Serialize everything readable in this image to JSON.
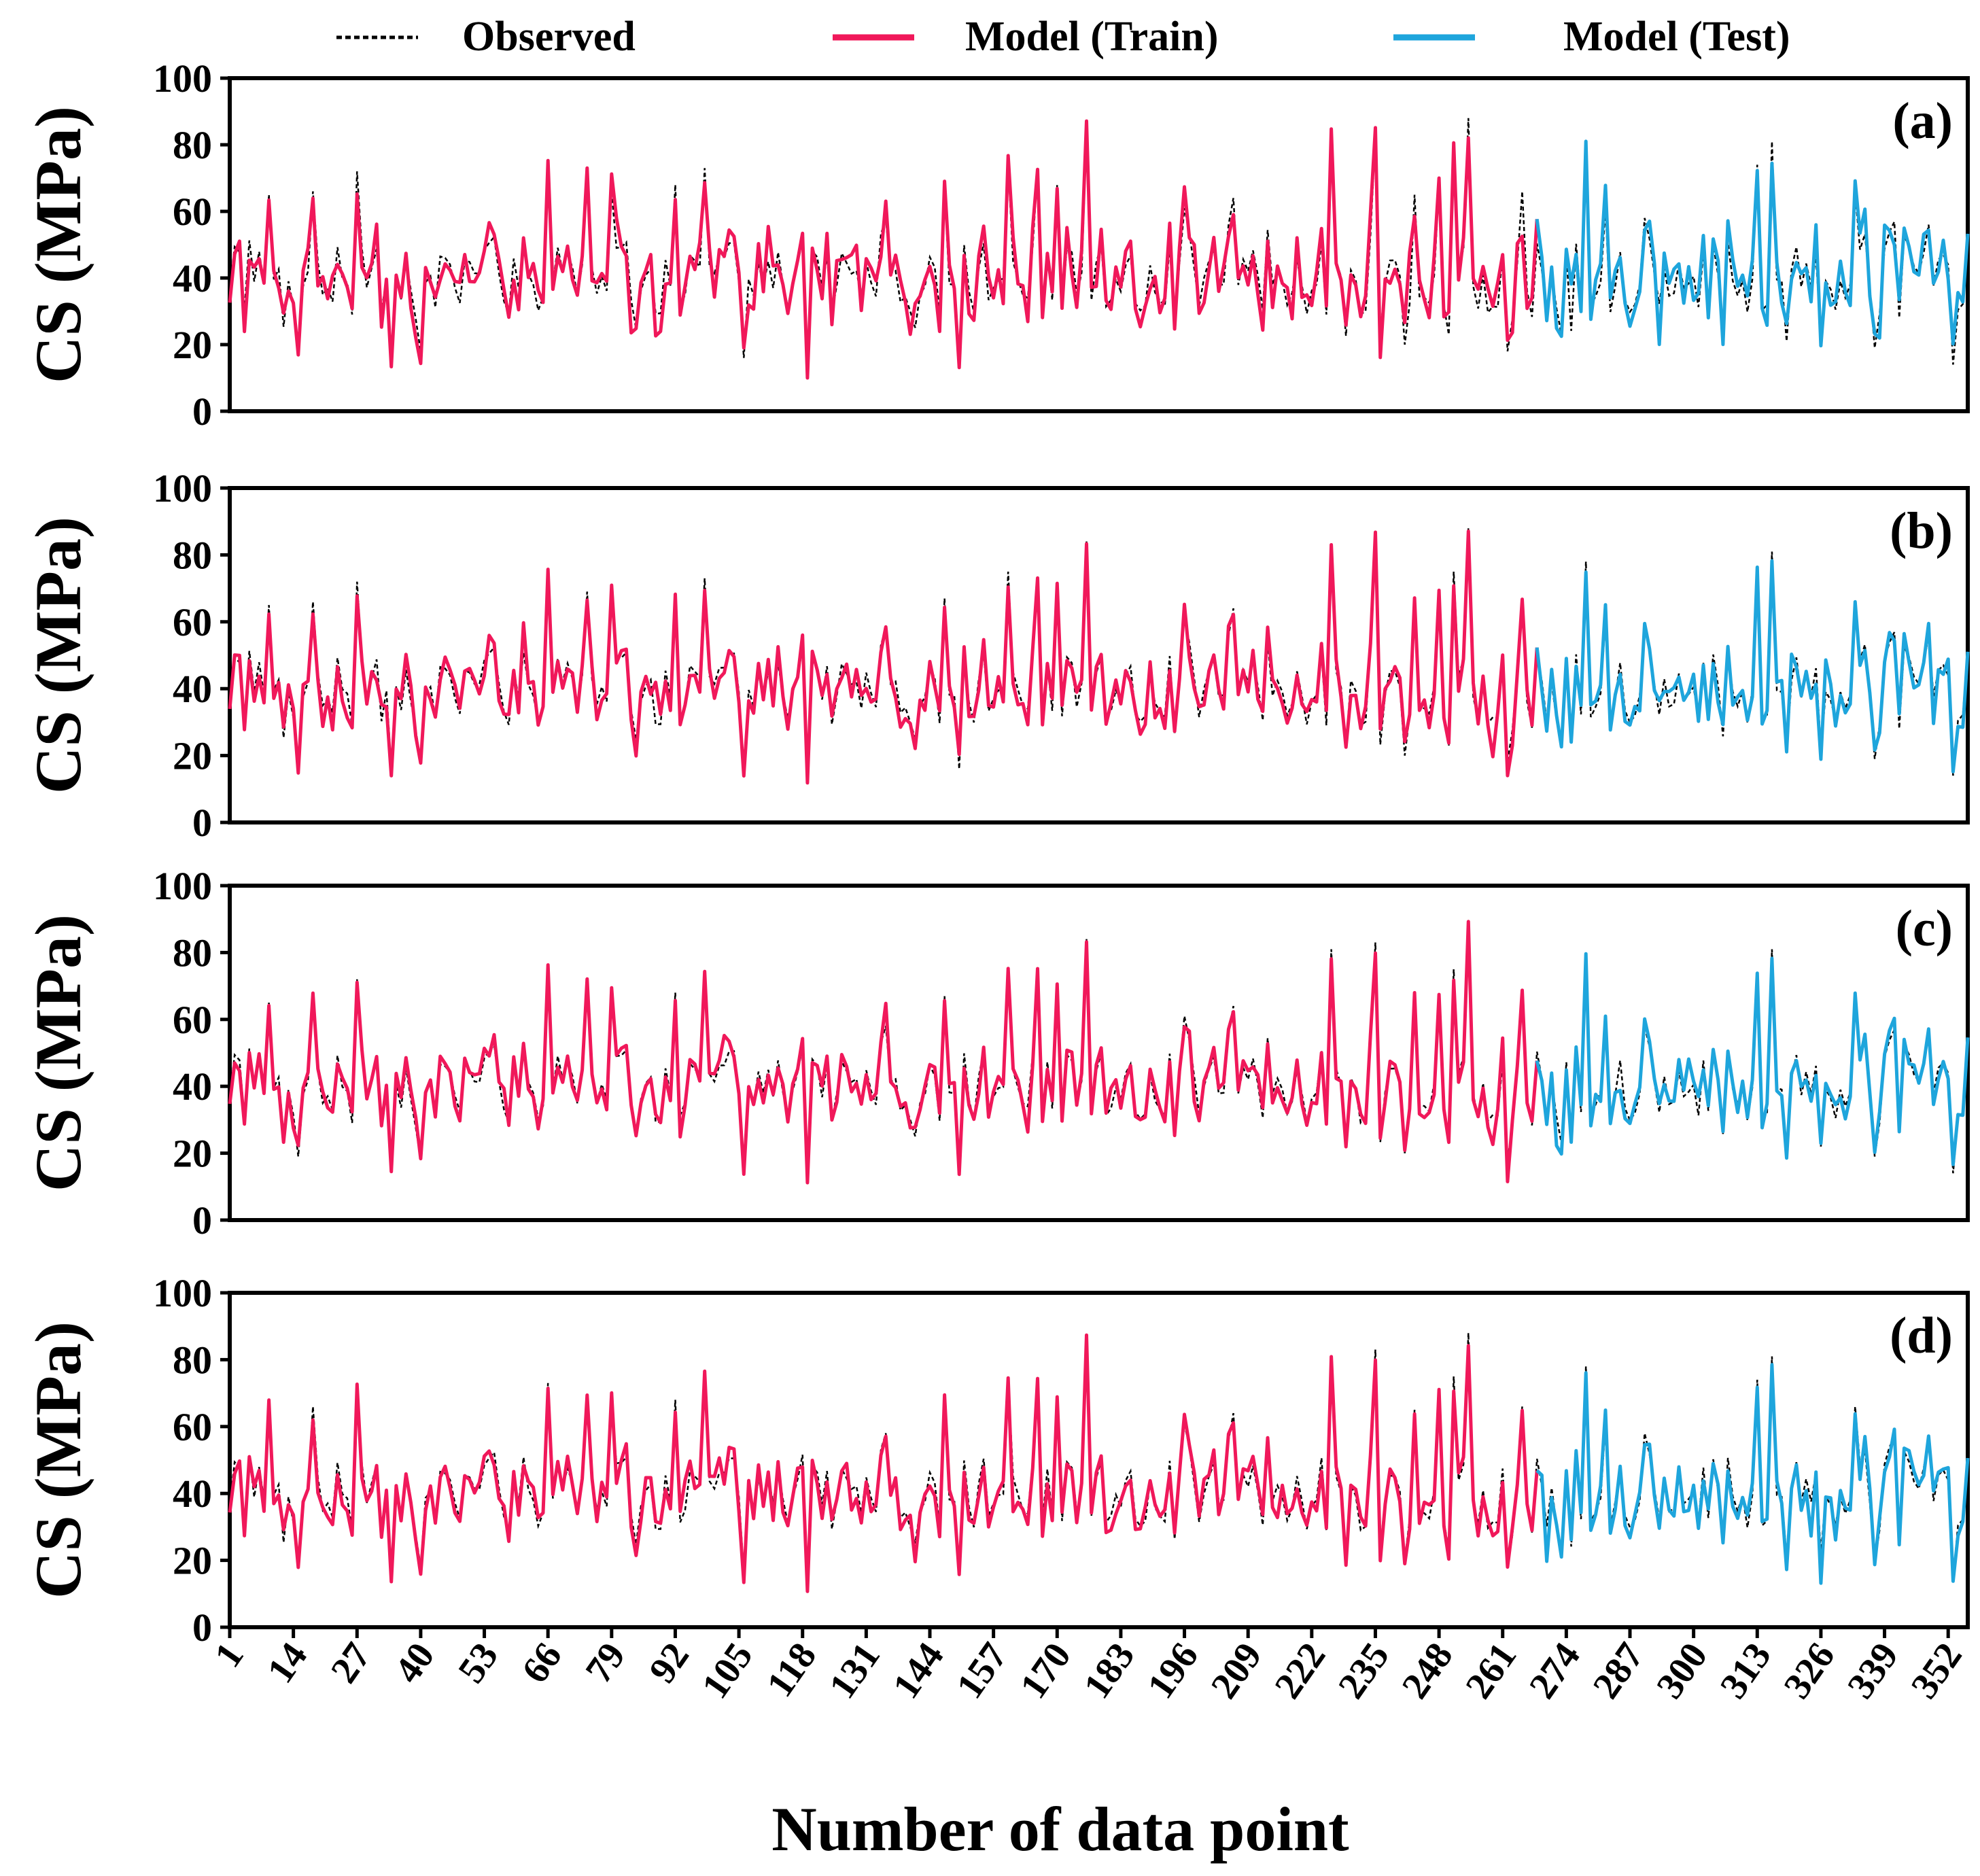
{
  "legend": {
    "observed": "Observed",
    "train": "Model (Train)",
    "test": "Model (Test)"
  },
  "colors": {
    "observed": "#000000",
    "train": "#f0185a",
    "test": "#1ea5dc",
    "axis": "#000000"
  },
  "chart_data": {
    "type": "line",
    "xlabel": "Number of data point",
    "ylabel": "CS (MPa)",
    "ylim": [
      0,
      100
    ],
    "yticks": [
      0,
      20,
      40,
      60,
      80,
      100
    ],
    "xlim": [
      1,
      356
    ],
    "xticks": [
      1,
      14,
      27,
      40,
      53,
      66,
      79,
      92,
      105,
      118,
      131,
      144,
      157,
      170,
      183,
      196,
      209,
      222,
      235,
      248,
      261,
      274,
      287,
      300,
      313,
      326,
      339,
      352
    ],
    "train_range": [
      1,
      268
    ],
    "test_range": [
      269,
      356
    ],
    "legend_position": "top",
    "panels": [
      {
        "label": "(a)",
        "model_noise": 7.5,
        "seed": 11
      },
      {
        "label": "(b)",
        "model_noise": 5.0,
        "seed": 23
      },
      {
        "label": "(c)",
        "model_noise": 3.5,
        "seed": 37
      },
      {
        "label": "(d)",
        "model_noise": 4.5,
        "seed": 53
      }
    ],
    "observed_peaks": [
      {
        "x": 9,
        "y": 65
      },
      {
        "x": 15,
        "y": 19
      },
      {
        "x": 18,
        "y": 66
      },
      {
        "x": 27,
        "y": 72
      },
      {
        "x": 34,
        "y": 16
      },
      {
        "x": 40,
        "y": 18
      },
      {
        "x": 66,
        "y": 73
      },
      {
        "x": 74,
        "y": 69
      },
      {
        "x": 79,
        "y": 66
      },
      {
        "x": 92,
        "y": 68
      },
      {
        "x": 98,
        "y": 73
      },
      {
        "x": 106,
        "y": 16
      },
      {
        "x": 119,
        "y": 13
      },
      {
        "x": 135,
        "y": 58
      },
      {
        "x": 147,
        "y": 67
      },
      {
        "x": 150,
        "y": 16
      },
      {
        "x": 160,
        "y": 75
      },
      {
        "x": 166,
        "y": 73
      },
      {
        "x": 170,
        "y": 68
      },
      {
        "x": 176,
        "y": 84
      },
      {
        "x": 196,
        "y": 61
      },
      {
        "x": 206,
        "y": 64
      },
      {
        "x": 226,
        "y": 81
      },
      {
        "x": 235,
        "y": 83
      },
      {
        "x": 241,
        "y": 20
      },
      {
        "x": 243,
        "y": 65
      },
      {
        "x": 248,
        "y": 68
      },
      {
        "x": 251,
        "y": 75
      },
      {
        "x": 254,
        "y": 88
      },
      {
        "x": 262,
        "y": 18
      },
      {
        "x": 265,
        "y": 66
      },
      {
        "x": 273,
        "y": 23
      },
      {
        "x": 278,
        "y": 78
      },
      {
        "x": 282,
        "y": 61
      },
      {
        "x": 290,
        "y": 58
      },
      {
        "x": 313,
        "y": 74
      },
      {
        "x": 316,
        "y": 81
      },
      {
        "x": 319,
        "y": 21
      },
      {
        "x": 326,
        "y": 22
      },
      {
        "x": 333,
        "y": 66
      },
      {
        "x": 337,
        "y": 19
      },
      {
        "x": 348,
        "y": 56
      },
      {
        "x": 353,
        "y": 14
      },
      {
        "x": 356,
        "y": 52
      }
    ]
  }
}
